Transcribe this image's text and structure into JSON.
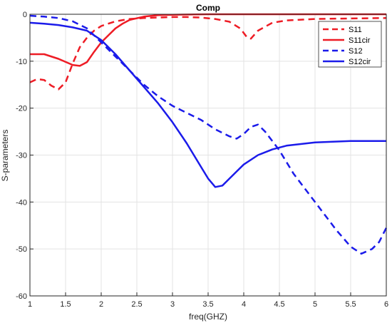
{
  "chart_data": {
    "type": "line",
    "title": "Comp",
    "xlabel": "freq(GHZ)",
    "ylabel": "S-parameters",
    "xlim": [
      1,
      6
    ],
    "ylim": [
      -60,
      0
    ],
    "xticks": [
      1,
      1.5,
      2,
      2.5,
      3,
      3.5,
      4,
      4.5,
      5,
      5.5,
      6
    ],
    "xtick_labels": [
      "1",
      "1.5",
      "2",
      "2.5",
      "3",
      "3.5",
      "4",
      "4.5",
      "5",
      "5.5",
      "6"
    ],
    "yticks": [
      0,
      -10,
      -20,
      -30,
      -40,
      -50,
      -60
    ],
    "ytick_labels": [
      "0",
      "-10",
      "-20",
      "-30",
      "-40",
      "-50",
      "-60"
    ],
    "grid": true,
    "legend_position": "top-right",
    "series": [
      {
        "name": "S11",
        "color": "#ee1c25",
        "dash": "dashed",
        "x": [
          1.0,
          1.1,
          1.2,
          1.3,
          1.4,
          1.5,
          1.6,
          1.7,
          1.8,
          1.9,
          2.0,
          2.2,
          2.4,
          2.6,
          2.8,
          3.0,
          3.2,
          3.4,
          3.6,
          3.8,
          3.95,
          4.05,
          4.1,
          4.2,
          4.4,
          4.6,
          5.0,
          5.5,
          6.0
        ],
        "y": [
          -14.5,
          -13.8,
          -14.0,
          -15.2,
          -16.0,
          -14.5,
          -10.5,
          -7.0,
          -5.0,
          -3.5,
          -2.5,
          -1.5,
          -1.0,
          -0.8,
          -0.7,
          -0.6,
          -0.6,
          -0.7,
          -1.0,
          -1.6,
          -3.0,
          -5.0,
          -5.2,
          -3.5,
          -1.8,
          -1.3,
          -1.0,
          -0.9,
          -0.8
        ]
      },
      {
        "name": "S11cir",
        "color": "#ee1c25",
        "dash": "solid",
        "x": [
          1.0,
          1.2,
          1.4,
          1.6,
          1.7,
          1.8,
          1.9,
          2.0,
          2.1,
          2.2,
          2.3,
          2.4,
          2.6,
          2.8,
          3.0,
          3.5,
          4.0,
          5.0,
          6.0
        ],
        "y": [
          -8.5,
          -8.5,
          -9.5,
          -10.8,
          -11.0,
          -10.2,
          -8.0,
          -6.0,
          -4.5,
          -3.0,
          -2.0,
          -1.2,
          -0.5,
          -0.2,
          -0.1,
          0.0,
          0.0,
          0.0,
          0.0
        ]
      },
      {
        "name": "S12",
        "color": "#1b1bea",
        "dash": "dashed",
        "x": [
          1.0,
          1.2,
          1.4,
          1.6,
          1.8,
          2.0,
          2.2,
          2.4,
          2.6,
          2.8,
          3.0,
          3.2,
          3.4,
          3.6,
          3.8,
          3.9,
          4.0,
          4.1,
          4.2,
          4.3,
          4.5,
          4.7,
          5.0,
          5.3,
          5.5,
          5.65,
          5.8,
          5.9,
          6.0
        ],
        "y": [
          -0.3,
          -0.5,
          -0.8,
          -1.5,
          -3.0,
          -6.0,
          -9.0,
          -12.0,
          -15.0,
          -17.5,
          -19.5,
          -21.0,
          -22.5,
          -24.5,
          -26.0,
          -26.5,
          -25.5,
          -24.0,
          -23.5,
          -25.0,
          -29.0,
          -34.0,
          -40.0,
          -46.0,
          -49.5,
          -51.0,
          -50.0,
          -48.5,
          -45.5
        ]
      },
      {
        "name": "S12cir",
        "color": "#1b1bea",
        "dash": "solid",
        "x": [
          1.0,
          1.2,
          1.4,
          1.6,
          1.8,
          2.0,
          2.2,
          2.4,
          2.6,
          2.8,
          3.0,
          3.2,
          3.4,
          3.5,
          3.6,
          3.7,
          3.8,
          3.9,
          4.0,
          4.2,
          4.4,
          4.6,
          5.0,
          5.5,
          6.0
        ],
        "y": [
          -1.8,
          -2.0,
          -2.3,
          -2.8,
          -3.5,
          -5.5,
          -8.5,
          -12.0,
          -15.5,
          -19.0,
          -23.0,
          -27.5,
          -32.5,
          -35.0,
          -36.8,
          -36.5,
          -35.0,
          -33.5,
          -32.0,
          -30.0,
          -28.8,
          -28.0,
          -27.3,
          -27.0,
          -27.0
        ]
      }
    ]
  }
}
